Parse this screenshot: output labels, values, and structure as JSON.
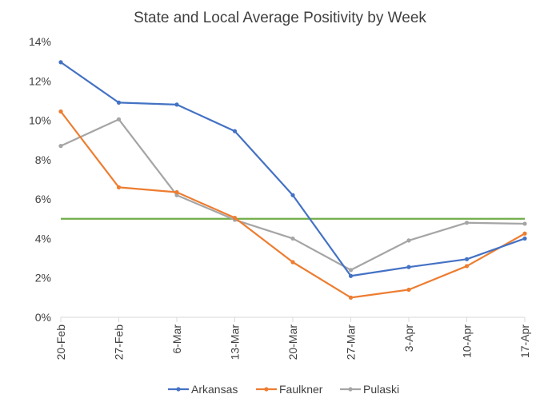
{
  "chart_data": {
    "type": "line",
    "title": "State and Local Average Positivity by Week",
    "categories": [
      "20-Feb",
      "27-Feb",
      "6-Mar",
      "13-Mar",
      "20-Mar",
      "27-Mar",
      "3-Apr",
      "10-Apr",
      "17-Apr"
    ],
    "y_ticks": [
      "0%",
      "2%",
      "4%",
      "6%",
      "8%",
      "10%",
      "12%",
      "14%"
    ],
    "ylim": [
      0,
      14
    ],
    "grid": false,
    "legend_position": "bottom",
    "series": [
      {
        "name": "Arkansas",
        "color": "#4472C4",
        "values": [
          12.95,
          10.9,
          10.8,
          9.45,
          6.2,
          2.1,
          2.55,
          2.95,
          4.0
        ]
      },
      {
        "name": "Faulkner",
        "color": "#ED7D31",
        "values": [
          10.45,
          6.6,
          6.35,
          5.05,
          2.8,
          1.0,
          1.4,
          2.6,
          4.25
        ]
      },
      {
        "name": "Pulaski",
        "color": "#A5A5A5",
        "values": [
          8.7,
          10.05,
          6.2,
          4.95,
          4.0,
          2.4,
          3.9,
          4.8,
          4.75
        ]
      }
    ],
    "reference_line": {
      "value": 5,
      "color": "#70AD47"
    }
  }
}
